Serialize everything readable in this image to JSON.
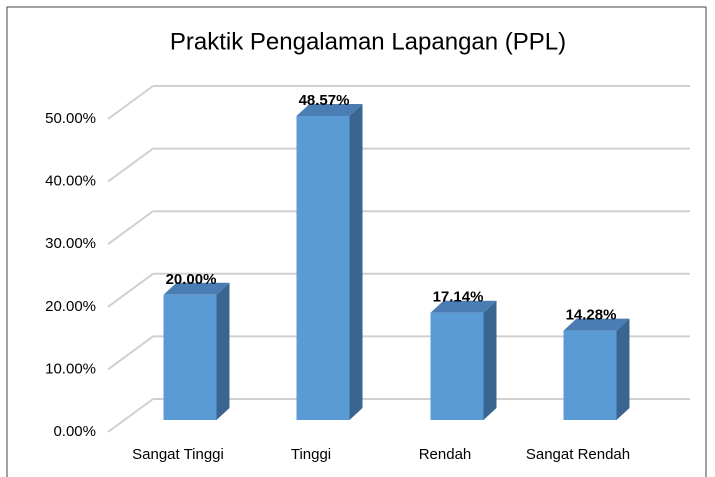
{
  "chart_data": {
    "type": "bar3d",
    "title": "Praktik Pengalaman Lapangan (PPL)",
    "categories": [
      "Sangat Tinggi",
      "Tinggi",
      "Rendah",
      "Sangat Rendah"
    ],
    "values": [
      20.0,
      48.57,
      17.14,
      14.28
    ],
    "value_labels": [
      "20.00%",
      "48.57%",
      "17.14%",
      "14.28%"
    ],
    "color": "#5b9bd5",
    "ylim": [
      0,
      50
    ],
    "yticks": [
      {
        "value": 0,
        "label": "0.00%"
      },
      {
        "value": 10,
        "label": "10.00%"
      },
      {
        "value": 20,
        "label": "20.00%"
      },
      {
        "value": 30,
        "label": "30.00%"
      },
      {
        "value": 40,
        "label": "40.00%"
      },
      {
        "value": 50,
        "label": "50.00%"
      }
    ],
    "grid": true
  }
}
